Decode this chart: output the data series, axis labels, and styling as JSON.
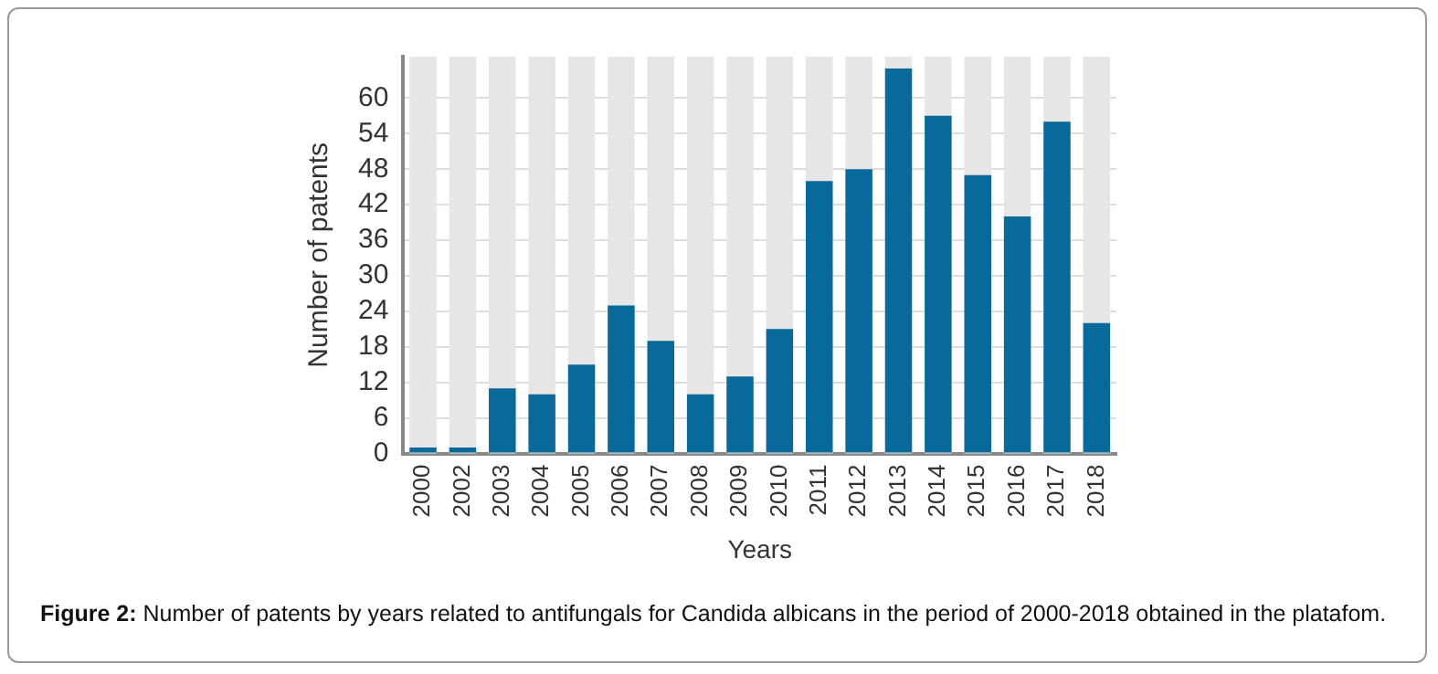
{
  "chart_data": {
    "type": "bar",
    "xlabel": "Years",
    "ylabel": "Number of patents",
    "categories": [
      "2000",
      "2002",
      "2003",
      "2004",
      "2005",
      "2006",
      "2007",
      "2008",
      "2009",
      "2010",
      "2011",
      "2012",
      "2013",
      "2014",
      "2015",
      "2016",
      "2017",
      "2018"
    ],
    "values": [
      1,
      1,
      11,
      10,
      15,
      25,
      19,
      10,
      13,
      21,
      46,
      48,
      65,
      57,
      47,
      40,
      56,
      22
    ],
    "color": "#086a9a",
    "ylim": [
      0,
      67
    ],
    "yticks": [
      0,
      6,
      12,
      18,
      24,
      30,
      36,
      42,
      48,
      54,
      60
    ],
    "grid": "y",
    "legend": false,
    "annotations": [
      "Figure 2: Number of patents by years related to antifungals for Candida albicans in the period of 2000-2018 obtained in the platafom."
    ]
  }
}
